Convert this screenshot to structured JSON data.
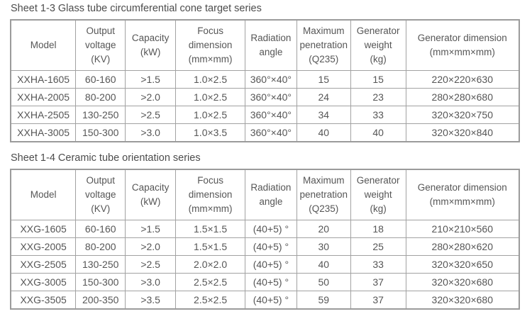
{
  "page": {
    "background_color": "#ffffff",
    "text_color": "#565656",
    "border_color": "#a2a2a2"
  },
  "tables": [
    {
      "title": "Sheet 1-3 Glass tube circumferential cone target series",
      "headers": [
        "Model",
        "Output\nvoltage\n(KV)",
        "Capacity\n(kW)",
        "Focus\ndimension\n(mm×mm)",
        "Radiation\nangle",
        "Maximum\npenetration\n(Q235)",
        "Generator\nweight\n(kg)",
        "Generator dimension\n(mm×mm×mm)"
      ],
      "rows": [
        [
          "XXHA-1605",
          "60-160",
          ">1.5",
          "1.0×2.5",
          "360°×40°",
          "15",
          "15",
          "220×220×630"
        ],
        [
          "XXHA-2005",
          "80-200",
          ">2.0",
          "1.0×2.5",
          "360°×40°",
          "24",
          "23",
          "280×280×680"
        ],
        [
          "XXHA-2505",
          "130-250",
          ">2.5",
          "1.0×2.5",
          "360°×40°",
          "34",
          "33",
          "320×320×750"
        ],
        [
          "XXHA-3005",
          "150-300",
          ">3.0",
          "1.0×3.5",
          "360°×40°",
          "40",
          "40",
          "320×320×840"
        ]
      ]
    },
    {
      "title": "Sheet 1-4 Ceramic tube orientation series",
      "headers": [
        "Model",
        "Output\nvoltage\n(KV)",
        "Capacity\n(kW)",
        "Focus\ndimension\n(mm×mm)",
        "Radiation\nangle",
        "Maximum\npenetration\n(Q235)",
        "Generator\nweight\n(kg)",
        "Generator dimension\n(mm×mm×mm)"
      ],
      "rows": [
        [
          "XXG-1605",
          "60-160",
          ">1.5",
          "1.5×1.5",
          "(40+5) °",
          "20",
          "18",
          "210×210×560"
        ],
        [
          "XXG-2005",
          "80-200",
          ">2.0",
          "1.5×1.5",
          "(40+5) °",
          "30",
          "25",
          "280×280×620"
        ],
        [
          "XXG-2505",
          "130-250",
          ">2.5",
          "2.0×2.0",
          "(40+5) °",
          "40",
          "33",
          "320×320×650"
        ],
        [
          "XXG-3005",
          "150-300",
          ">3.0",
          "2.5×2.5",
          "(40+5) °",
          "50",
          "37",
          "320×320×680"
        ],
        [
          "XXG-3505",
          "200-350",
          ">3.5",
          "2.5×2.5",
          "(40+5) °",
          "59",
          "37",
          "320×320×680"
        ]
      ]
    }
  ]
}
